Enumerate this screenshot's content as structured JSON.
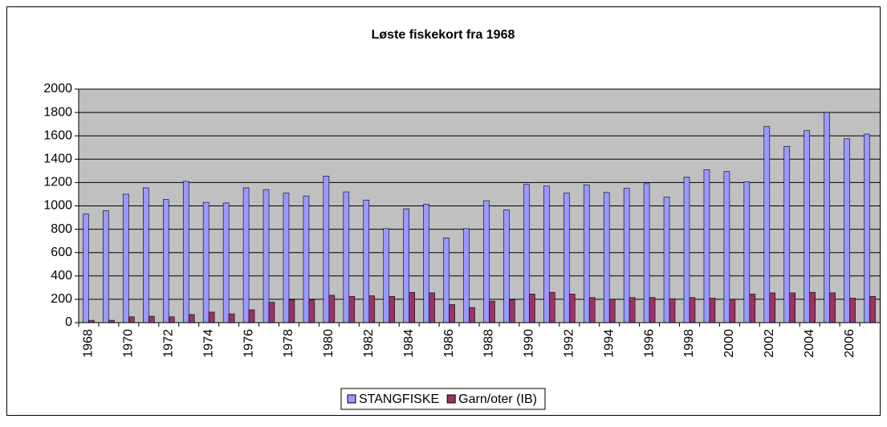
{
  "chart_data": {
    "type": "bar",
    "title": "Løste fiskekort fra 1968",
    "categories": [
      "1968",
      null,
      "1970",
      null,
      "1972",
      null,
      "1974",
      null,
      "1976",
      null,
      "1978",
      null,
      "1980",
      null,
      "1982",
      null,
      "1984",
      null,
      "1986",
      null,
      "1988",
      null,
      "1990",
      null,
      "1992",
      null,
      "1994",
      null,
      "1996",
      null,
      "1998",
      null,
      "2000",
      null,
      "2002",
      null,
      "2004",
      null,
      "2006",
      null
    ],
    "series": [
      {
        "name": "STANGFISKE",
        "color": "#9999ff",
        "values": [
          930,
          960,
          1100,
          1155,
          1055,
          1210,
          1030,
          1025,
          1155,
          1140,
          1110,
          1085,
          1255,
          1120,
          1050,
          805,
          975,
          1015,
          725,
          805,
          1045,
          965,
          1185,
          1170,
          1110,
          1180,
          1115,
          1150,
          1190,
          1075,
          1245,
          1310,
          1295,
          1205,
          1680,
          1510,
          1645,
          1800,
          1575,
          1615
        ]
      },
      {
        "name": "Garn/oter (IB)",
        "color": "#993366",
        "values": [
          20,
          20,
          50,
          55,
          50,
          70,
          90,
          75,
          110,
          175,
          195,
          195,
          235,
          225,
          230,
          225,
          260,
          255,
          155,
          130,
          185,
          195,
          245,
          260,
          245,
          215,
          200,
          215,
          215,
          205,
          215,
          210,
          200,
          245,
          255,
          255,
          260,
          255,
          210,
          225
        ]
      }
    ],
    "ylim": [
      0,
      2000
    ],
    "yticks": [
      0,
      200,
      400,
      600,
      800,
      1000,
      1200,
      1400,
      1600,
      1800,
      2000
    ],
    "grid": true,
    "legend": "bottom",
    "plot_background": "#c0c0c0"
  }
}
